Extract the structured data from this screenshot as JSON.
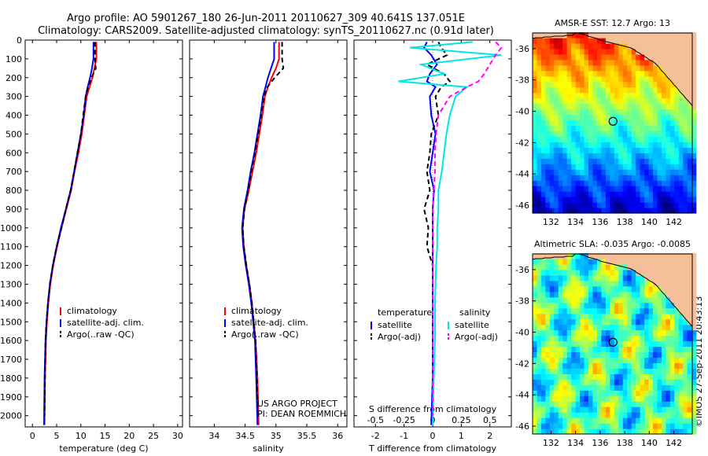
{
  "title_line1": "Argo profile: AO 5901267_180 26-Jun-2011 20110627_309 40.641S 137.051E",
  "title_line2": "Climatology: CARS2009. Satellite-adjusted climatology: synTS_20110627.nc (0.91d later)",
  "side_stamp": "©IMOS 27-Sep-2011 20:43:13",
  "colors": {
    "climatology": "#ff0000",
    "satellite": "#0000ff",
    "argo": "#000000",
    "sal_satellite": "#00e5e5",
    "sal_argo": "#ff00ff",
    "land": "#f5bf9a"
  },
  "chart_data": [
    {
      "type": "line",
      "id": "temperature",
      "xlabel": "temperature (deg C)",
      "ylabel": "",
      "xlim": [
        -1.5,
        31
      ],
      "ylim": [
        2060,
        0
      ],
      "xticks": [
        "0",
        "5",
        "10",
        "15",
        "20",
        "25",
        "30"
      ],
      "yticks": [
        "0",
        "100",
        "200",
        "300",
        "400",
        "500",
        "600",
        "700",
        "800",
        "900",
        "1000",
        "1100",
        "1200",
        "1300",
        "1400",
        "1500",
        "1600",
        "1700",
        "1800",
        "1900",
        "2000"
      ],
      "legend": [
        "climatology",
        "satellite-adj. clim.",
        "Argo(..raw -QC)"
      ],
      "legend_position": "lower-middle",
      "series": [
        {
          "name": "climatology",
          "style": "solid",
          "x": [
            13.2,
            13.2,
            12.8,
            12.4,
            11.8,
            11.2,
            10.7,
            10.2,
            9.5,
            8.7,
            8.0,
            7.0,
            6.0,
            5.1,
            4.3,
            3.7,
            3.3,
            3.0,
            2.8,
            2.6,
            2.5
          ],
          "y": [
            10,
            100,
            150,
            200,
            250,
            300,
            400,
            500,
            600,
            700,
            800,
            900,
            1000,
            1100,
            1200,
            1300,
            1400,
            1500,
            1600,
            1800,
            2050
          ]
        },
        {
          "name": "satellite-adj. clim.",
          "style": "solid",
          "x": [
            12.6,
            12.6,
            12.3,
            11.9,
            11.4,
            11.0,
            10.6,
            10.0,
            9.3,
            8.6,
            7.9,
            6.9,
            5.9,
            5.0,
            4.2,
            3.6,
            3.2,
            2.9,
            2.7,
            2.5,
            2.4
          ],
          "y": [
            10,
            100,
            150,
            200,
            250,
            300,
            400,
            500,
            600,
            700,
            800,
            900,
            1000,
            1100,
            1200,
            1300,
            1400,
            1500,
            1600,
            1800,
            2050
          ]
        },
        {
          "name": "Argo(..raw -QC)",
          "style": "dashed",
          "x": [
            12.9,
            12.9,
            13.1,
            12.2,
            11.5,
            11.0,
            10.5,
            10.0,
            9.3,
            8.6,
            7.9,
            6.9,
            6.0,
            5.0,
            4.2,
            3.6,
            3.2,
            2.9,
            2.7,
            2.6,
            2.5
          ],
          "y": [
            10,
            100,
            150,
            200,
            250,
            300,
            400,
            500,
            600,
            700,
            800,
            900,
            1000,
            1100,
            1200,
            1300,
            1400,
            1500,
            1600,
            1800,
            2000
          ]
        }
      ],
      "annotations": []
    },
    {
      "type": "line",
      "id": "salinity",
      "xlabel": "salinity",
      "ylabel": "",
      "xlim": [
        33.6,
        36.15
      ],
      "ylim": [
        2060,
        0
      ],
      "xticks": [
        "34",
        "34.5",
        "35",
        "35.5",
        "36"
      ],
      "yticks": [],
      "legend": [
        "climatology",
        "satellite-adj. clim.",
        "Argo(..raw -QC)"
      ],
      "legend_position": "lower-middle",
      "series": [
        {
          "name": "climatology",
          "style": "solid",
          "x": [
            35.05,
            35.05,
            35.0,
            34.93,
            34.87,
            34.82,
            34.78,
            34.73,
            34.68,
            34.62,
            34.56,
            34.49,
            34.46,
            34.48,
            34.52,
            34.57,
            34.61,
            34.64,
            34.67,
            34.7,
            34.72
          ],
          "y": [
            10,
            100,
            150,
            200,
            250,
            300,
            400,
            500,
            600,
            700,
            800,
            900,
            1000,
            1100,
            1200,
            1300,
            1400,
            1500,
            1600,
            1800,
            2050
          ]
        },
        {
          "name": "satellite-adj. clim.",
          "style": "solid",
          "x": [
            34.97,
            34.97,
            34.92,
            34.87,
            34.83,
            34.79,
            34.75,
            34.7,
            34.65,
            34.59,
            34.54,
            34.48,
            34.45,
            34.47,
            34.51,
            34.56,
            34.6,
            34.63,
            34.66,
            34.68,
            34.7
          ],
          "y": [
            10,
            100,
            150,
            200,
            250,
            300,
            400,
            500,
            600,
            700,
            800,
            900,
            1000,
            1100,
            1200,
            1300,
            1400,
            1500,
            1600,
            1800,
            2050
          ]
        },
        {
          "name": "Argo(..raw -QC)",
          "style": "dashed",
          "x": [
            35.1,
            35.1,
            35.12,
            34.98,
            34.86,
            34.81,
            34.76,
            34.71,
            34.66,
            34.6,
            34.55,
            34.49,
            34.46,
            34.48,
            34.52,
            34.57,
            34.61,
            34.64,
            34.67,
            34.69,
            34.71
          ],
          "y": [
            10,
            100,
            150,
            200,
            250,
            300,
            400,
            500,
            600,
            700,
            800,
            900,
            1000,
            1100,
            1200,
            1300,
            1400,
            1500,
            1600,
            1800,
            2000
          ]
        }
      ],
      "annotations": [
        "US ARGO PROJECT",
        "PI: DEAN ROEMMICH"
      ]
    },
    {
      "type": "line",
      "id": "difference",
      "xlabel": "T difference from climatology",
      "xlabel_top": "S difference from climatology",
      "ylabel": "",
      "xlim": [
        -2.75,
        2.75
      ],
      "ylim": [
        2060,
        0
      ],
      "xticks": [
        "-2",
        "-1",
        "0",
        "1",
        "2"
      ],
      "xticks_top": [
        "-0.5",
        "-0.25",
        "0",
        "0.25",
        "0.5"
      ],
      "yticks": [],
      "legend_groups": [
        "temperature",
        "salinity"
      ],
      "legend": [
        "satellite",
        "Argo(-adj)",
        "satellite",
        "Argo(-adj)"
      ],
      "legend_position": "lower-middle",
      "series": [
        {
          "name": "temperature satellite",
          "style": "solid",
          "x": [
            -0.2,
            -0.3,
            -0.05,
            0.15,
            -0.1,
            -0.2,
            0.1,
            -0.1,
            -0.05,
            0.1,
            0.0,
            -0.1,
            0.05,
            0.0,
            0.0,
            0.0,
            0.0,
            0.0,
            0.0,
            0.0,
            -0.05
          ],
          "y": [
            10,
            40,
            80,
            130,
            180,
            220,
            250,
            300,
            400,
            500,
            600,
            700,
            800,
            900,
            1000,
            1100,
            1200,
            1400,
            1600,
            1800,
            2050
          ]
        },
        {
          "name": "temperature Argo(-adj)",
          "style": "dashed",
          "x": [
            0.2,
            0.3,
            0.5,
            -0.2,
            0.4,
            0.6,
            0.3,
            0.1,
            0.2,
            -0.05,
            -0.1,
            -0.2,
            -0.1,
            -0.3,
            -0.15,
            -0.2,
            0.0,
            0.0,
            0.0,
            0.0,
            0.0
          ],
          "y": [
            10,
            40,
            80,
            130,
            180,
            220,
            250,
            300,
            400,
            500,
            600,
            700,
            800,
            900,
            1000,
            1100,
            1200,
            1400,
            1600,
            1800,
            2000
          ]
        },
        {
          "name": "salinity satellite",
          "style": "solid",
          "x": [
            0.35,
            -0.2,
            0.6,
            -0.1,
            0.1,
            -0.3,
            0.3,
            0.2,
            0.15,
            0.12,
            0.1,
            0.08,
            0.05,
            0.05,
            0.04,
            0.04,
            0.03,
            0.02,
            0.02,
            0.01,
            0.0
          ],
          "y": [
            10,
            40,
            80,
            130,
            180,
            220,
            250,
            300,
            400,
            500,
            600,
            700,
            800,
            900,
            1000,
            1100,
            1200,
            1400,
            1600,
            1800,
            2050
          ]
        },
        {
          "name": "salinity Argo(-adj)",
          "style": "dashed",
          "x": [
            0.55,
            0.6,
            0.55,
            0.5,
            0.45,
            0.4,
            0.3,
            0.15,
            0.05,
            0.03,
            0.02,
            0.02,
            0.01,
            0.0,
            0.0,
            0.0,
            0.0,
            0.0,
            0.0,
            0.0,
            0.0
          ],
          "y": [
            10,
            40,
            80,
            130,
            180,
            220,
            250,
            300,
            400,
            500,
            600,
            700,
            800,
            900,
            1000,
            1100,
            1200,
            1400,
            1600,
            1800,
            2000
          ]
        }
      ],
      "annotations": []
    },
    {
      "type": "heatmap",
      "id": "sst_map",
      "title": "AMSR-E SST: 12.7 Argo: 13",
      "xlim": [
        130.5,
        143.5
      ],
      "ylim": [
        -46.5,
        -35
      ],
      "xticks": [
        "132",
        "134",
        "136",
        "138",
        "140",
        "142"
      ],
      "yticks": [
        "-36",
        "-38",
        "-40",
        "-42",
        "-44",
        "-46"
      ],
      "marker": {
        "lon": 137.05,
        "lat": -40.64
      },
      "colormap": "jet",
      "field_range": [
        11,
        16
      ]
    },
    {
      "type": "heatmap",
      "id": "sla_map",
      "title": "Altimetric SLA: -0.035 Argo: -0.0085",
      "xlim": [
        130.5,
        143.5
      ],
      "ylim": [
        -46.5,
        -35
      ],
      "xticks": [
        "132",
        "134",
        "136",
        "138",
        "140",
        "142"
      ],
      "yticks": [
        "-36",
        "-38",
        "-40",
        "-42",
        "-44",
        "-46"
      ],
      "marker": {
        "lon": 137.05,
        "lat": -40.64
      },
      "colormap": "jet",
      "field_range": [
        -0.3,
        0.3
      ]
    }
  ]
}
